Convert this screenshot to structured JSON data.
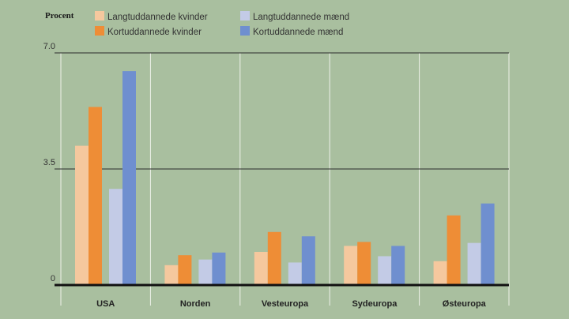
{
  "chart_data": {
    "type": "bar",
    "ylabel": "Procent",
    "ylim": [
      0,
      7.0
    ],
    "yticks": [
      "0",
      "3.5",
      "7.0"
    ],
    "categories": [
      "USA",
      "Norden",
      "Vesteuropa",
      "Sydeuropa",
      "Østeuropa"
    ],
    "series": [
      {
        "name": "Langtuddannede kvinder",
        "color": "#f5c89e",
        "values": [
          4.2,
          0.6,
          1.0,
          1.18,
          0.72
        ]
      },
      {
        "name": "Kortuddannede kvinder",
        "color": "#ee8d36",
        "values": [
          5.37,
          0.9,
          1.6,
          1.3,
          2.1
        ]
      },
      {
        "name": "Langtuddannede mænd",
        "color": "#c3cbe6",
        "values": [
          2.9,
          0.77,
          0.68,
          0.87,
          1.27
        ]
      },
      {
        "name": "Kortuddannede mænd",
        "color": "#6f8fcf",
        "values": [
          6.45,
          0.98,
          1.47,
          1.18,
          2.46
        ]
      }
    ],
    "grid": true,
    "legend": "top"
  }
}
